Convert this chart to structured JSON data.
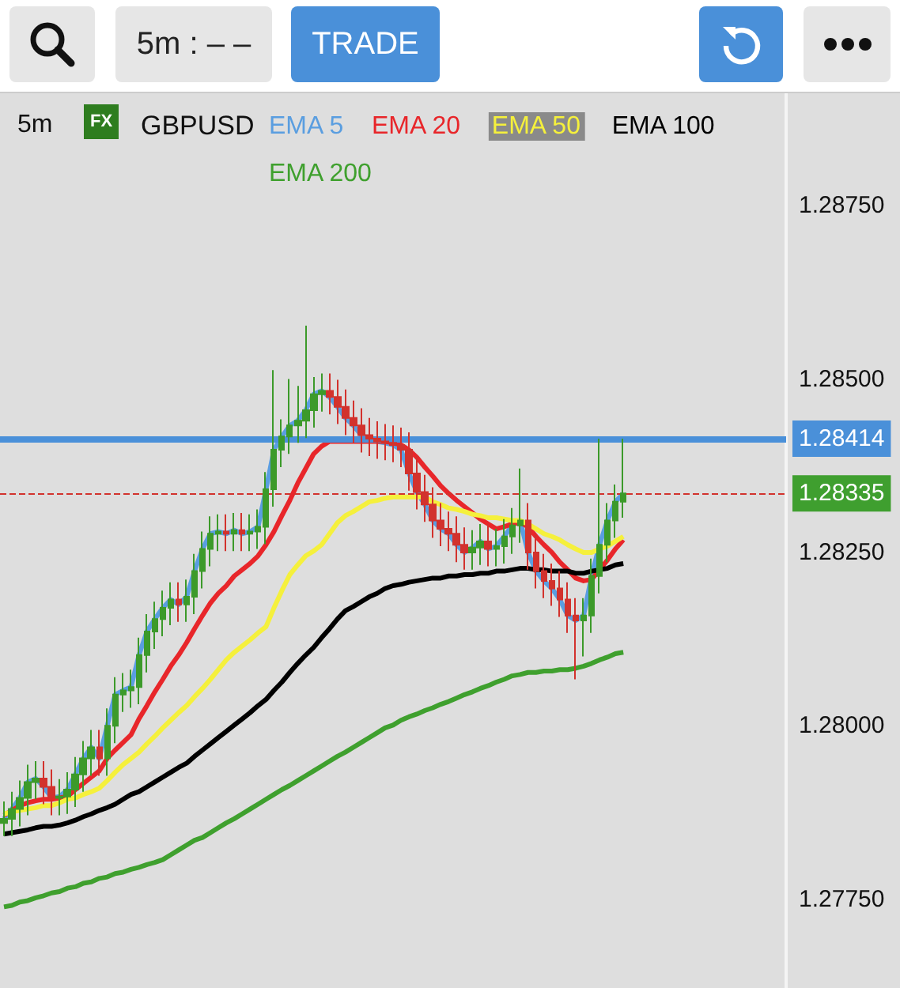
{
  "chart_data": {
    "type": "candlestick",
    "title": "GBPUSD",
    "subtitle": "5m",
    "annotations": [
      "5m : – –",
      "TRADE",
      "FX"
    ],
    "categories": [
      null,
      null,
      null,
      null,
      null,
      null,
      null,
      null,
      null,
      null,
      null,
      null,
      null,
      null,
      null,
      null,
      null,
      null,
      null,
      null,
      null,
      null,
      null,
      null,
      null,
      null,
      null,
      null,
      null,
      null,
      null,
      null,
      null,
      null,
      null,
      null,
      null,
      null,
      null,
      null,
      null,
      null,
      null,
      null,
      null,
      null,
      null,
      null,
      null,
      null,
      null,
      null,
      null,
      null,
      null,
      null,
      null,
      null,
      null,
      null,
      null,
      null,
      null,
      null,
      null,
      null,
      null,
      null,
      null,
      null,
      null,
      null,
      null,
      null,
      null,
      null,
      null,
      null,
      null,
      null,
      null,
      null,
      null,
      null,
      null,
      null,
      null,
      null,
      null,
      null,
      null,
      null,
      null,
      null,
      null,
      null,
      null,
      null,
      null
    ],
    "ohlc": [
      [
        1.2786,
        1.27891,
        1.27841,
        1.27866
      ],
      [
        1.27866,
        1.27905,
        1.27841,
        1.2788
      ],
      [
        1.2788,
        1.27921,
        1.27855,
        1.27896
      ],
      [
        1.27896,
        1.27944,
        1.27871,
        1.27919
      ],
      [
        1.27919,
        1.27949,
        1.27894,
        1.27924
      ],
      [
        1.27924,
        1.27949,
        1.27887,
        1.27912
      ],
      [
        1.27912,
        1.27937,
        1.27871,
        1.27896
      ],
      [
        1.27896,
        1.27923,
        1.27871,
        1.27898
      ],
      [
        1.27898,
        1.27933,
        1.27873,
        1.27908
      ],
      [
        1.27908,
        1.27955,
        1.27883,
        1.2793
      ],
      [
        1.2793,
        1.27978,
        1.27905,
        1.27953
      ],
      [
        1.27953,
        1.27994,
        1.27928,
        1.27969
      ],
      [
        1.27969,
        1.27994,
        1.27928,
        1.27953
      ],
      [
        1.27953,
        1.28025,
        1.27928,
        1.28
      ],
      [
        1.28,
        1.2807,
        1.27975,
        1.28045
      ],
      [
        1.28045,
        1.28076,
        1.2802,
        1.28051
      ],
      [
        1.28051,
        1.28081,
        1.28026,
        1.28056
      ],
      [
        1.28056,
        1.28127,
        1.28031,
        1.28102
      ],
      [
        1.28102,
        1.28161,
        1.28077,
        1.28136
      ],
      [
        1.28136,
        1.28179,
        1.28111,
        1.28154
      ],
      [
        1.28154,
        1.28195,
        1.28129,
        1.2817
      ],
      [
        1.2817,
        1.28207,
        1.28145,
        1.28182
      ],
      [
        1.28182,
        1.28207,
        1.2815,
        1.28175
      ],
      [
        1.28175,
        1.28211,
        1.2815,
        1.28186
      ],
      [
        1.28186,
        1.28248,
        1.28161,
        1.28223
      ],
      [
        1.28223,
        1.2828,
        1.28198,
        1.28255
      ],
      [
        1.28255,
        1.28302,
        1.2823,
        1.28277
      ],
      [
        1.28277,
        1.28305,
        1.28252,
        1.2828
      ],
      [
        1.2828,
        1.28305,
        1.28252,
        1.28277
      ],
      [
        1.28277,
        1.28307,
        1.28252,
        1.28282
      ],
      [
        1.28282,
        1.28307,
        1.28252,
        1.28277
      ],
      [
        1.28277,
        1.28305,
        1.28252,
        1.2828
      ],
      [
        1.2828,
        1.28312,
        1.28255,
        1.28287
      ],
      [
        1.28287,
        1.28366,
        1.28262,
        1.28341
      ],
      [
        1.28341,
        1.28513,
        1.28316,
        1.28398
      ],
      [
        1.28398,
        1.28442,
        1.28373,
        1.28417
      ],
      [
        1.28417,
        1.285,
        1.28392,
        1.28433
      ],
      [
        1.28433,
        1.2849,
        1.28408,
        1.2844
      ],
      [
        1.2844,
        1.28577,
        1.28415,
        1.28455
      ],
      [
        1.28455,
        1.28503,
        1.2843,
        1.28478
      ],
      [
        1.28478,
        1.28508,
        1.28453,
        1.28483
      ],
      [
        1.28483,
        1.28508,
        1.28449,
        1.28474
      ],
      [
        1.28474,
        1.28499,
        1.28435,
        1.2846
      ],
      [
        1.2846,
        1.28485,
        1.28419,
        1.28444
      ],
      [
        1.28444,
        1.28469,
        1.28408,
        1.28433
      ],
      [
        1.28433,
        1.28458,
        1.28394,
        1.28419
      ],
      [
        1.28419,
        1.28444,
        1.28389,
        1.28414
      ],
      [
        1.28414,
        1.28439,
        1.28385,
        1.2841
      ],
      [
        1.2841,
        1.28435,
        1.28383,
        1.28408
      ],
      [
        1.28408,
        1.28433,
        1.2838,
        1.28405
      ],
      [
        1.28405,
        1.2843,
        1.28373,
        1.28398
      ],
      [
        1.28398,
        1.28423,
        1.28339,
        1.28364
      ],
      [
        1.28364,
        1.28389,
        1.28312,
        1.28337
      ],
      [
        1.28337,
        1.28362,
        1.28294,
        1.28319
      ],
      [
        1.28319,
        1.28344,
        1.28271,
        1.28296
      ],
      [
        1.28296,
        1.28321,
        1.28259,
        1.28284
      ],
      [
        1.28284,
        1.28309,
        1.28252,
        1.28277
      ],
      [
        1.28277,
        1.28302,
        1.28236,
        1.28261
      ],
      [
        1.28261,
        1.28286,
        1.28225,
        1.2825
      ],
      [
        1.2825,
        1.28282,
        1.28225,
        1.28257
      ],
      [
        1.28257,
        1.28291,
        1.28232,
        1.28266
      ],
      [
        1.28266,
        1.28291,
        1.2823,
        1.28255
      ],
      [
        1.28255,
        1.28284,
        1.2823,
        1.28259
      ],
      [
        1.28259,
        1.28298,
        1.28234,
        1.28273
      ],
      [
        1.28273,
        1.28314,
        1.28248,
        1.28289
      ],
      [
        1.28289,
        1.28371,
        1.28264,
        1.28296
      ],
      [
        1.28296,
        1.28321,
        1.28225,
        1.2825
      ],
      [
        1.2825,
        1.28275,
        1.28198,
        1.28223
      ],
      [
        1.28223,
        1.28248,
        1.28184,
        1.28209
      ],
      [
        1.28209,
        1.28234,
        1.28173,
        1.28198
      ],
      [
        1.28198,
        1.28223,
        1.28157,
        1.28182
      ],
      [
        1.28182,
        1.28207,
        1.28134,
        1.28159
      ],
      [
        1.28159,
        1.28184,
        1.28067,
        1.28152
      ],
      [
        1.28152,
        1.28184,
        1.281,
        1.28159
      ],
      [
        1.28159,
        1.28241,
        1.28134,
        1.28216
      ],
      [
        1.28216,
        1.28414,
        1.28191,
        1.28261
      ],
      [
        1.28261,
        1.28321,
        1.28236,
        1.28296
      ],
      [
        1.28296,
        1.28348,
        1.28271,
        1.28323
      ],
      [
        1.28323,
        1.28414,
        1.283,
        1.28335
      ],
      null,
      null,
      null,
      null,
      null,
      null,
      null,
      null,
      null,
      null,
      null,
      null,
      null,
      null,
      null,
      null,
      null,
      null,
      null,
      null
    ],
    "colors": [
      "#3c9a2a",
      "#3c9a2a",
      "#3c9a2a",
      "#3c9a2a",
      "#3c9a2a",
      "#d2322d",
      "#d2322d",
      "#3c9a2a",
      "#3c9a2a",
      "#3c9a2a",
      "#3c9a2a",
      "#3c9a2a",
      "#d2322d",
      "#3c9a2a",
      "#3c9a2a",
      "#3c9a2a",
      "#3c9a2a",
      "#3c9a2a",
      "#3c9a2a",
      "#3c9a2a",
      "#3c9a2a",
      "#3c9a2a",
      "#d2322d",
      "#3c9a2a",
      "#3c9a2a",
      "#3c9a2a",
      "#3c9a2a",
      "#3c9a2a",
      "#d2322d",
      "#3c9a2a",
      "#d2322d",
      "#3c9a2a",
      "#3c9a2a",
      "#3c9a2a",
      "#3c9a2a",
      "#3c9a2a",
      "#3c9a2a",
      "#3c9a2a",
      "#3c9a2a",
      "#3c9a2a",
      "#3c9a2a",
      "#d2322d",
      "#d2322d",
      "#d2322d",
      "#d2322d",
      "#d2322d",
      "#d2322d",
      "#d2322d",
      "#d2322d",
      "#d2322d",
      "#d2322d",
      "#d2322d",
      "#d2322d",
      "#d2322d",
      "#d2322d",
      "#d2322d",
      "#d2322d",
      "#d2322d",
      "#d2322d",
      "#3c9a2a",
      "#3c9a2a",
      "#d2322d",
      "#3c9a2a",
      "#3c9a2a",
      "#3c9a2a",
      "#3c9a2a",
      "#d2322d",
      "#d2322d",
      "#d2322d",
      "#d2322d",
      "#d2322d",
      "#d2322d",
      "#d2322d",
      "#3c9a2a",
      "#3c9a2a",
      "#3c9a2a",
      "#3c9a2a",
      "#3c9a2a",
      "#3c9a2a",
      null,
      null,
      null,
      null,
      null,
      null,
      null,
      null,
      null,
      null,
      null,
      null,
      null,
      null,
      null,
      null,
      null,
      null,
      null,
      null
    ],
    "series": [
      {
        "type": "line",
        "name": "EMA 5",
        "color": "#5a9ee0",
        "values": [
          1.27866,
          1.2788,
          1.27896,
          1.27919,
          1.27924,
          1.27912,
          1.27896,
          1.27898,
          1.27908,
          1.2793,
          1.27953,
          1.27969,
          1.27953,
          1.28,
          1.28045,
          1.28051,
          1.28056,
          1.28102,
          1.28136,
          1.28154,
          1.2817,
          1.28182,
          1.28175,
          1.28186,
          1.28223,
          1.28255,
          1.28277,
          1.2828,
          1.28277,
          1.28282,
          1.28277,
          1.2828,
          1.28287,
          1.28341,
          1.28398,
          1.28417,
          1.28433,
          1.2844,
          1.28455,
          1.28478,
          1.28483,
          1.28474,
          1.2846,
          1.28444,
          1.28433,
          1.28419,
          1.28414,
          1.2841,
          1.28408,
          1.28405,
          1.28398,
          1.28364,
          1.28337,
          1.28319,
          1.28296,
          1.28284,
          1.28277,
          1.28261,
          1.2825,
          1.28257,
          1.28266,
          1.28255,
          1.28259,
          1.28273,
          1.28289,
          1.28296,
          1.2825,
          1.28223,
          1.28209,
          1.28198,
          1.28182,
          1.28159,
          1.28152,
          1.28159,
          1.28216,
          1.28261,
          1.28296,
          1.28323,
          1.28335,
          null,
          null,
          null,
          null,
          null,
          null,
          null,
          null,
          null,
          null,
          null,
          null,
          null,
          null,
          null,
          null,
          null,
          null,
          null,
          null
        ]
      },
      {
        "type": "line",
        "name": "EMA 20",
        "color": "#e8262a",
        "values": [
          1.27871,
          1.27878,
          1.27885,
          1.27889,
          1.27892,
          1.27894,
          1.27894,
          1.27896,
          1.27898,
          1.27908,
          1.27917,
          1.27926,
          1.27935,
          1.27953,
          1.27965,
          1.27976,
          1.27987,
          1.2801,
          1.28029,
          1.28049,
          1.28067,
          1.28086,
          1.28102,
          1.2812,
          1.2814,
          1.28159,
          1.28177,
          1.28191,
          1.28202,
          1.28216,
          1.28225,
          1.28234,
          1.28245,
          1.28261,
          1.2828,
          1.28303,
          1.28325,
          1.2835,
          1.28371,
          1.28392,
          1.28403,
          1.2841,
          1.2841,
          1.2841,
          1.2841,
          1.2841,
          1.2841,
          1.2841,
          1.2841,
          1.28408,
          1.28405,
          1.28398,
          1.28387,
          1.28373,
          1.2836,
          1.28346,
          1.28335,
          1.28325,
          1.28316,
          1.28307,
          1.28298,
          1.28291,
          1.28284,
          1.28287,
          1.28291,
          1.28293,
          1.28287,
          1.28273,
          1.28261,
          1.2825,
          1.28236,
          1.28225,
          1.28213,
          1.28209,
          1.28211,
          1.28225,
          1.28239,
          1.28255,
          1.28268,
          null,
          null,
          null,
          null,
          null,
          null,
          null,
          null,
          null,
          null,
          null,
          null,
          null,
          null,
          null,
          null,
          null,
          null,
          null,
          null
        ]
      },
      {
        "type": "line",
        "name": "EMA 50",
        "color": "#f5f03c",
        "values": [
          1.27873,
          1.27876,
          1.27878,
          1.2788,
          1.27882,
          1.27885,
          1.27885,
          1.27889,
          1.27894,
          1.27896,
          1.27901,
          1.27905,
          1.2791,
          1.27921,
          1.27933,
          1.27944,
          1.27953,
          1.27962,
          1.27974,
          1.27985,
          1.27997,
          1.28008,
          1.28019,
          1.28029,
          1.28042,
          1.28054,
          1.28067,
          1.28081,
          1.28095,
          1.28106,
          1.28115,
          1.28124,
          1.28134,
          1.28143,
          1.2817,
          1.28195,
          1.28218,
          1.28232,
          1.28245,
          1.28252,
          1.28261,
          1.28277,
          1.28293,
          1.28303,
          1.28309,
          1.28316,
          1.28323,
          1.28325,
          1.28328,
          1.2833,
          1.2833,
          1.2833,
          1.2833,
          1.2833,
          1.28323,
          1.28319,
          1.28314,
          1.28312,
          1.28309,
          1.28305,
          1.28303,
          1.283,
          1.283,
          1.28298,
          1.28296,
          1.28296,
          1.28291,
          1.28284,
          1.28277,
          1.28273,
          1.28268,
          1.28261,
          1.28255,
          1.2825,
          1.2825,
          1.28255,
          1.28259,
          1.28266,
          1.28273,
          null,
          null,
          null,
          null,
          null,
          null,
          null,
          null,
          null,
          null,
          null,
          null,
          null,
          null,
          null,
          null,
          null,
          null,
          null,
          null
        ]
      },
      {
        "type": "line",
        "name": "EMA 100",
        "color": "#000000",
        "values": [
          1.27844,
          1.27846,
          1.27848,
          1.2785,
          1.27853,
          1.27855,
          1.27855,
          1.27857,
          1.2786,
          1.27864,
          1.27869,
          1.27873,
          1.27878,
          1.27882,
          1.27887,
          1.27894,
          1.27901,
          1.27905,
          1.27912,
          1.27919,
          1.27926,
          1.27933,
          1.2794,
          1.27946,
          1.27956,
          1.27965,
          1.27974,
          1.27983,
          1.27992,
          1.28001,
          1.2801,
          1.28019,
          1.28029,
          1.28038,
          1.28051,
          1.28063,
          1.28077,
          1.2809,
          1.28102,
          1.28113,
          1.28127,
          1.2814,
          1.28154,
          1.28166,
          1.28172,
          1.28179,
          1.28186,
          1.28191,
          1.28198,
          1.28202,
          1.28204,
          1.28207,
          1.28209,
          1.28211,
          1.28213,
          1.28213,
          1.28216,
          1.28216,
          1.28218,
          1.28218,
          1.2822,
          1.2822,
          1.28223,
          1.28223,
          1.28225,
          1.28227,
          1.28227,
          1.28225,
          1.28225,
          1.28223,
          1.28223,
          1.28223,
          1.2822,
          1.2822,
          1.28223,
          1.28225,
          1.28227,
          1.28232,
          1.28234,
          null,
          null,
          null,
          null,
          null,
          null,
          null,
          null,
          null,
          null,
          null,
          null,
          null,
          null,
          null,
          null,
          null,
          null,
          null,
          null
        ]
      },
      {
        "type": "line",
        "name": "EMA 200",
        "color": "#3fa02e",
        "values": [
          1.27739,
          1.27741,
          1.27746,
          1.27748,
          1.27752,
          1.27755,
          1.27759,
          1.27761,
          1.27766,
          1.27768,
          1.27773,
          1.27775,
          1.2778,
          1.27782,
          1.27787,
          1.27789,
          1.27793,
          1.27796,
          1.278,
          1.27803,
          1.27807,
          1.27814,
          1.27821,
          1.27828,
          1.27835,
          1.27839,
          1.27846,
          1.27853,
          1.2786,
          1.27866,
          1.27873,
          1.2788,
          1.27887,
          1.27894,
          1.27901,
          1.27908,
          1.27914,
          1.27921,
          1.27928,
          1.27935,
          1.27942,
          1.27949,
          1.27956,
          1.27962,
          1.27969,
          1.27976,
          1.27983,
          1.2799,
          1.27997,
          1.28001,
          1.28008,
          1.28013,
          1.28017,
          1.28022,
          1.28026,
          1.28031,
          1.28035,
          1.2804,
          1.28045,
          1.28049,
          1.28054,
          1.28058,
          1.28063,
          1.28067,
          1.28072,
          1.28074,
          1.28077,
          1.28077,
          1.28079,
          1.28079,
          1.28081,
          1.28081,
          1.28083,
          1.28086,
          1.2809,
          1.28095,
          1.28099,
          1.28104,
          1.28106,
          null,
          null,
          null,
          null,
          null,
          null,
          null,
          null,
          null,
          null,
          null,
          null,
          null,
          null,
          null,
          null,
          null,
          null,
          null,
          null
        ]
      }
    ],
    "ylim": [
      1.27622,
      1.28912
    ],
    "yticks": [
      {
        "value": 1.2775,
        "label": "1.27750"
      },
      {
        "value": 1.28,
        "label": "1.28000"
      },
      {
        "value": 1.2825,
        "label": "1.28250"
      },
      {
        "value": 1.285,
        "label": "1.28500"
      },
      {
        "value": 1.2875,
        "label": "1.28750"
      }
    ],
    "ref_lines": [
      {
        "axis": "y",
        "value": 1.28414,
        "label": "1.28414",
        "color": "#4a90d9",
        "line_style": "solid"
      },
      {
        "axis": "y",
        "value": 1.28335,
        "label": "1.28335",
        "color": "#d2322d",
        "line_style": "dashed"
      }
    ],
    "tick_labels": "y",
    "legend": "top",
    "grid": false
  }
}
